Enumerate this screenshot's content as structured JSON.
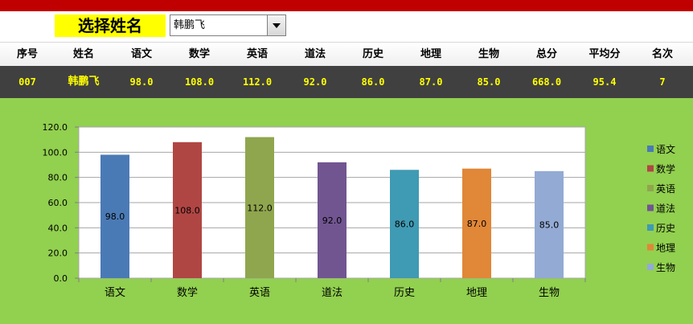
{
  "selector": {
    "label": "选择姓名",
    "value": "韩鹏飞"
  },
  "table": {
    "headers": [
      "序号",
      "姓名",
      "语文",
      "数学",
      "英语",
      "道法",
      "历史",
      "地理",
      "生物",
      "总分",
      "平均分",
      "名次"
    ],
    "row": [
      "007",
      "韩鹏飞",
      "98.0",
      "108.0",
      "112.0",
      "92.0",
      "86.0",
      "87.0",
      "85.0",
      "668.0",
      "95.4",
      "7"
    ]
  },
  "colors": {
    "topbar": "#c00000",
    "selector_highlight": "#ffff00",
    "data_row_bg": "#404040",
    "data_row_text": "#ffff00",
    "chart_bg": "#92d050"
  },
  "chart_data": {
    "type": "bar",
    "categories": [
      "语文",
      "数学",
      "英语",
      "道法",
      "历史",
      "地理",
      "生物"
    ],
    "values": [
      98.0,
      108.0,
      112.0,
      92.0,
      86.0,
      87.0,
      85.0
    ],
    "data_labels": [
      "98.0",
      "108.0",
      "112.0",
      "92.0",
      "86.0",
      "87.0",
      "85.0"
    ],
    "yticks": [
      "0.0",
      "20.0",
      "40.0",
      "60.0",
      "80.0",
      "100.0",
      "120.0"
    ],
    "ylim": [
      0,
      120
    ],
    "grid": true,
    "legend_position": "right",
    "legend": [
      "语文",
      "数学",
      "英语",
      "道法",
      "历史",
      "地理",
      "生物"
    ],
    "bar_colors": [
      "#4a7ab5",
      "#b04644",
      "#8fa64e",
      "#715591",
      "#3f9ab3",
      "#e08738",
      "#93aad4"
    ]
  }
}
